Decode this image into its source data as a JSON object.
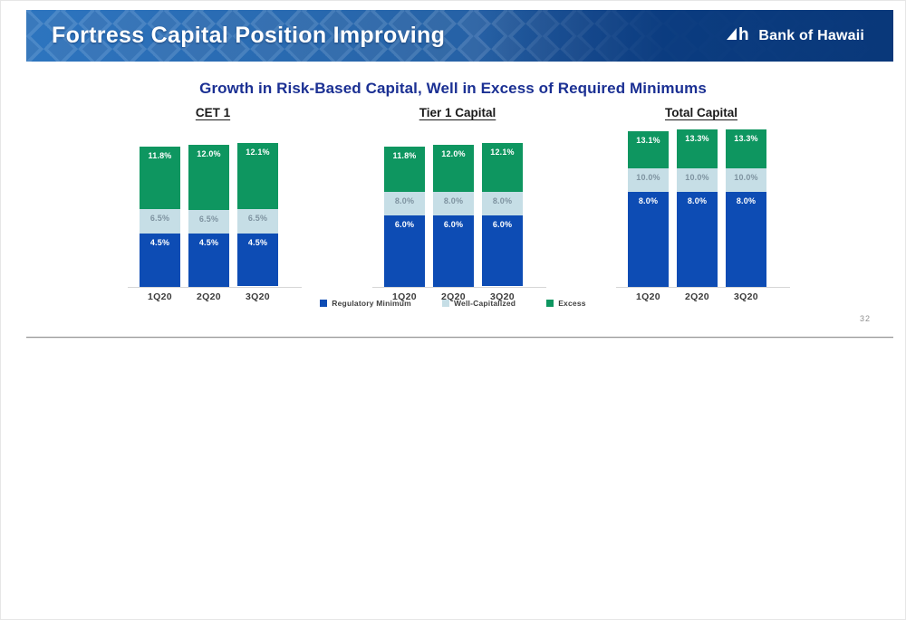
{
  "header": {
    "title": "Fortress Capital Position Improving",
    "logo_text": "Bank of Hawaii"
  },
  "subtitle": "Growth in Risk-Based Capital, Well in Excess of Required Minimums",
  "colors": {
    "regulatory_minimum": "#0d4cb4",
    "well_capitalized": "#c6dee6",
    "excess": "#0e9660",
    "header_blue": "#12519e",
    "subtitle_navy": "#1b3093"
  },
  "legend": {
    "items": [
      {
        "label": "Regulatory Minimum",
        "color": "#0d4cb4"
      },
      {
        "label": "Well-Capitalized",
        "color": "#c6dee6"
      },
      {
        "label": "Excess",
        "color": "#0e9660"
      }
    ]
  },
  "page": {
    "number": "32"
  },
  "chart_data": [
    {
      "type": "bar",
      "stacked": true,
      "title": "CET 1",
      "categories": [
        "1Q20",
        "2Q20",
        "3Q20"
      ],
      "note": "values are cumulative capital ratios (%); segment labels show cumulative level",
      "series": [
        {
          "name": "Regulatory Minimum",
          "color": "#0d4cb4",
          "label_color": "#ffffff",
          "cumulative_pct": [
            4.5,
            4.5,
            4.5
          ],
          "labels": [
            "4.5%",
            "4.5%",
            "4.5%"
          ]
        },
        {
          "name": "Well-Capitalized",
          "color": "#c6dee6",
          "label_color": "#7e93a0",
          "cumulative_pct": [
            6.5,
            6.5,
            6.5
          ],
          "labels": [
            "6.5%",
            "6.5%",
            "6.5%"
          ]
        },
        {
          "name": "Excess",
          "color": "#0e9660",
          "label_color": "#ffffff",
          "cumulative_pct": [
            11.8,
            12.0,
            12.1
          ],
          "labels": [
            "11.8%",
            "12.0%",
            "12.1%"
          ]
        }
      ]
    },
    {
      "type": "bar",
      "stacked": true,
      "title": "Tier 1 Capital",
      "categories": [
        "1Q20",
        "2Q20",
        "3Q20"
      ],
      "note": "values are cumulative capital ratios (%); segment labels show cumulative level",
      "series": [
        {
          "name": "Regulatory Minimum",
          "color": "#0d4cb4",
          "label_color": "#ffffff",
          "cumulative_pct": [
            6.0,
            6.0,
            6.0
          ],
          "labels": [
            "6.0%",
            "6.0%",
            "6.0%"
          ]
        },
        {
          "name": "Well-Capitalized",
          "color": "#c6dee6",
          "label_color": "#7e93a0",
          "cumulative_pct": [
            8.0,
            8.0,
            8.0
          ],
          "labels": [
            "8.0%",
            "8.0%",
            "8.0%"
          ]
        },
        {
          "name": "Excess",
          "color": "#0e9660",
          "label_color": "#ffffff",
          "cumulative_pct": [
            11.8,
            12.0,
            12.1
          ],
          "labels": [
            "11.8%",
            "12.0%",
            "12.1%"
          ]
        }
      ]
    },
    {
      "type": "bar",
      "stacked": true,
      "title": "Total Capital",
      "categories": [
        "1Q20",
        "2Q20",
        "3Q20"
      ],
      "note": "values are cumulative capital ratios (%); segment labels show cumulative level",
      "series": [
        {
          "name": "Regulatory Minimum",
          "color": "#0d4cb4",
          "label_color": "#ffffff",
          "cumulative_pct": [
            8.0,
            8.0,
            8.0
          ],
          "labels": [
            "8.0%",
            "8.0%",
            "8.0%"
          ]
        },
        {
          "name": "Well-Capitalized",
          "color": "#c6dee6",
          "label_color": "#7e93a0",
          "cumulative_pct": [
            10.0,
            10.0,
            10.0
          ],
          "labels": [
            "10.0%",
            "10.0%",
            "10.0%"
          ]
        },
        {
          "name": "Excess",
          "color": "#0e9660",
          "label_color": "#ffffff",
          "cumulative_pct": [
            13.1,
            13.3,
            13.3
          ],
          "labels": [
            "13.1%",
            "13.3%",
            "13.3%"
          ]
        }
      ]
    }
  ]
}
